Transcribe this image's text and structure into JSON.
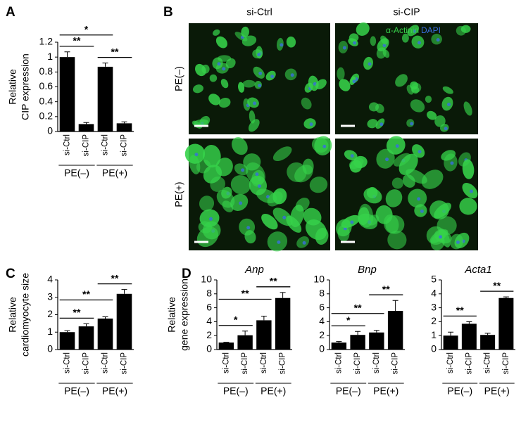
{
  "image_panel": {
    "label": "B",
    "columns": [
      "si-Ctrl",
      "si-CIP"
    ],
    "rows": [
      "PE(–)",
      "PE(+)"
    ],
    "legend": [
      {
        "text": "α-Actinin",
        "color": "#36d24a"
      },
      {
        "text": "DAPI",
        "color": "#3a6ee0"
      }
    ]
  },
  "chart_data": [
    {
      "type": "bar",
      "panel": "A",
      "ylabel": [
        "Relative",
        "CIP expression"
      ],
      "color": "#000000",
      "categories": [
        "si-Ctrl",
        "si-CIP",
        "si-Ctrl",
        "si-CIP"
      ],
      "values": [
        1.0,
        0.1,
        0.87,
        0.11
      ],
      "errors": [
        0.07,
        0.02,
        0.05,
        0.02
      ],
      "ylim": [
        0,
        1.2
      ],
      "yticks": [
        0,
        0.2,
        0.4,
        0.6,
        0.8,
        1,
        1.2
      ],
      "groups": [
        {
          "label": "PE(–)",
          "from": 0,
          "to": 1
        },
        {
          "label": "PE(+)",
          "from": 2,
          "to": 3
        }
      ],
      "significance": [
        {
          "label": "**",
          "from": 0,
          "to": 1
        },
        {
          "label": "*",
          "from": 0,
          "to": 2
        },
        {
          "label": "**",
          "from": 2,
          "to": 3
        }
      ]
    },
    {
      "type": "bar",
      "panel": "C",
      "ylabel": [
        "Relative",
        "cardiomyocyte size"
      ],
      "color": "#000000",
      "categories": [
        "si-Ctrl",
        "si-CIP",
        "si-Ctrl",
        "si-CIP"
      ],
      "values": [
        1.0,
        1.33,
        1.78,
        3.2
      ],
      "errors": [
        0.08,
        0.15,
        0.1,
        0.25
      ],
      "ylim": [
        0,
        4
      ],
      "yticks": [
        0,
        1,
        2,
        3,
        4
      ],
      "groups": [
        {
          "label": "PE(–)",
          "from": 0,
          "to": 1
        },
        {
          "label": "PE(+)",
          "from": 2,
          "to": 3
        }
      ],
      "significance": [
        {
          "label": "**",
          "from": 0,
          "to": 1
        },
        {
          "label": "**",
          "from": 0,
          "to": 2
        },
        {
          "label": "**",
          "from": 2,
          "to": 3
        }
      ]
    },
    {
      "type": "bar",
      "panel": "D",
      "subtitle": "Anp",
      "ylabel": [
        "Relative",
        "gene expression"
      ],
      "color": "#000000",
      "categories": [
        "si-Ctrl",
        "si-CIP",
        "si-Ctrl",
        "si-CIP"
      ],
      "values": [
        1.0,
        2.05,
        4.2,
        7.4
      ],
      "errors": [
        0.05,
        0.6,
        0.6,
        0.8
      ],
      "ylim": [
        0,
        10
      ],
      "yticks": [
        0,
        2,
        4,
        6,
        8,
        10
      ],
      "groups": [
        {
          "label": "PE(–)",
          "from": 0,
          "to": 1
        },
        {
          "label": "PE(+)",
          "from": 2,
          "to": 3
        }
      ],
      "significance": [
        {
          "label": "*",
          "from": 0,
          "to": 1
        },
        {
          "label": "**",
          "from": 0,
          "to": 2
        },
        {
          "label": "**",
          "from": 2,
          "to": 3
        }
      ]
    },
    {
      "type": "bar",
      "subtitle": "Bnp",
      "color": "#000000",
      "categories": [
        "si-Ctrl",
        "si-CIP",
        "si-Ctrl",
        "si-CIP"
      ],
      "values": [
        1.0,
        2.1,
        2.45,
        5.55
      ],
      "errors": [
        0.15,
        0.5,
        0.3,
        1.5
      ],
      "ylim": [
        0,
        10
      ],
      "yticks": [
        0,
        2,
        4,
        6,
        8,
        10
      ],
      "groups": [
        {
          "label": "PE(–)",
          "from": 0,
          "to": 1
        },
        {
          "label": "PE(+)",
          "from": 2,
          "to": 3
        }
      ],
      "significance": [
        {
          "label": "*",
          "from": 0,
          "to": 1
        },
        {
          "label": "**",
          "from": 0,
          "to": 2
        },
        {
          "label": "**",
          "from": 2,
          "to": 3
        }
      ]
    },
    {
      "type": "bar",
      "subtitle": "Acta1",
      "color": "#000000",
      "categories": [
        "si-Ctrl",
        "si-CIP",
        "si-Ctrl",
        "si-CIP"
      ],
      "values": [
        1.0,
        1.85,
        1.05,
        3.7
      ],
      "errors": [
        0.25,
        0.15,
        0.12,
        0.08
      ],
      "ylim": [
        0,
        5
      ],
      "yticks": [
        0,
        1,
        2,
        3,
        4,
        5
      ],
      "groups": [
        {
          "label": "PE(–)",
          "from": 0,
          "to": 1
        },
        {
          "label": "PE(+)",
          "from": 2,
          "to": 3
        }
      ],
      "significance": [
        {
          "label": "**",
          "from": 0,
          "to": 1
        },
        {
          "label": "**",
          "from": 2,
          "to": 3
        }
      ]
    }
  ]
}
